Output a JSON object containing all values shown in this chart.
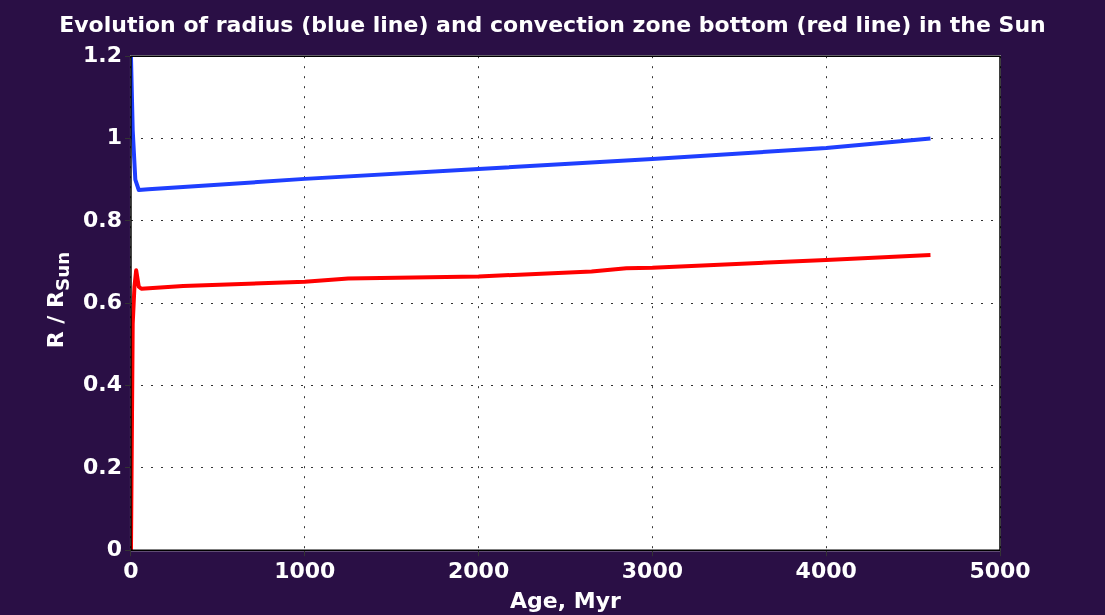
{
  "chart_data": {
    "type": "line",
    "title": "Evolution of radius (blue line) and convection zone bottom (red line) in the Sun",
    "xlabel": "Age, Myr",
    "ylabel": "R / R$_{Sun}$",
    "xlim": [
      0,
      5000
    ],
    "xticks": [
      0,
      1000,
      2000,
      3000,
      4000,
      5000
    ],
    "ylim": [
      0,
      1.2
    ],
    "yticks": [
      0,
      0.2,
      0.4,
      0.6,
      0.8,
      1,
      1.2
    ],
    "grid": true,
    "line_style": "solid",
    "legend": false,
    "series": [
      {
        "color": "#1f3fff",
        "x": [
          0,
          10,
          25,
          45,
          100,
          300,
          1000,
          2000,
          3000,
          4000,
          4600
        ],
        "values": [
          1.2,
          1.02,
          0.9,
          0.875,
          0.877,
          0.882,
          0.902,
          0.926,
          0.95,
          0.977,
          1.0
        ]
      },
      {
        "color": "#ff0000",
        "x": [
          0,
          10,
          20,
          30,
          45,
          60,
          300,
          1000,
          1250,
          2000,
          2650,
          2850,
          3000,
          4000,
          4600
        ],
        "values": [
          0,
          0.55,
          0.64,
          0.68,
          0.64,
          0.635,
          0.642,
          0.652,
          0.66,
          0.665,
          0.677,
          0.685,
          0.686,
          0.705,
          0.717
        ]
      }
    ]
  }
}
